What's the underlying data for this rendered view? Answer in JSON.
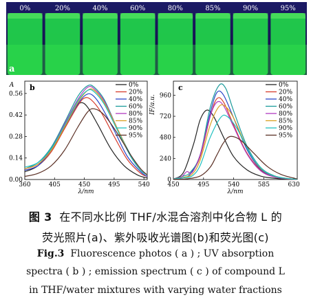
{
  "photo": {
    "panel_label": "a",
    "fractions": [
      "0%",
      "20%",
      "40%",
      "60%",
      "80%",
      "85%",
      "90%",
      "95%"
    ]
  },
  "chart_data": [
    {
      "type": "line",
      "panel": "b",
      "xlabel": "λ/nm",
      "ylabel": "A",
      "xlim": [
        360,
        545
      ],
      "ylim": [
        0,
        0.64
      ],
      "xticks": [
        360,
        405,
        450,
        495,
        540
      ],
      "yticks": [
        0.0,
        0.14,
        0.28,
        0.42,
        0.56
      ],
      "legend_position": "right",
      "series": [
        {
          "name": "0%",
          "color": "#222222",
          "x": [
            360,
            380,
            400,
            420,
            435,
            445,
            455,
            470,
            490,
            510,
            530,
            545
          ],
          "y": [
            0.05,
            0.09,
            0.2,
            0.36,
            0.46,
            0.5,
            0.47,
            0.36,
            0.2,
            0.09,
            0.03,
            0.01
          ]
        },
        {
          "name": "20%",
          "color": "#d63a2a",
          "x": [
            360,
            380,
            400,
            420,
            440,
            450,
            460,
            475,
            495,
            515,
            535,
            545
          ],
          "y": [
            0.06,
            0.09,
            0.18,
            0.33,
            0.48,
            0.53,
            0.52,
            0.44,
            0.28,
            0.13,
            0.04,
            0.02
          ]
        },
        {
          "name": "40%",
          "color": "#2a44c8",
          "x": [
            360,
            380,
            400,
            420,
            440,
            452,
            462,
            475,
            495,
            515,
            535,
            545
          ],
          "y": [
            0.06,
            0.09,
            0.19,
            0.34,
            0.49,
            0.55,
            0.55,
            0.48,
            0.32,
            0.15,
            0.05,
            0.02
          ]
        },
        {
          "name": "60%",
          "color": "#1a9a9a",
          "x": [
            360,
            380,
            400,
            420,
            440,
            455,
            465,
            480,
            500,
            520,
            535,
            545
          ],
          "y": [
            0.07,
            0.11,
            0.21,
            0.37,
            0.54,
            0.61,
            0.6,
            0.52,
            0.33,
            0.16,
            0.06,
            0.03
          ]
        },
        {
          "name": "80%",
          "color": "#b03abf",
          "x": [
            360,
            380,
            400,
            420,
            440,
            455,
            465,
            480,
            500,
            520,
            535,
            545
          ],
          "y": [
            0.07,
            0.1,
            0.2,
            0.36,
            0.52,
            0.6,
            0.59,
            0.51,
            0.33,
            0.15,
            0.06,
            0.03
          ]
        },
        {
          "name": "85%",
          "color": "#d8a020",
          "x": [
            360,
            380,
            400,
            420,
            440,
            455,
            465,
            480,
            500,
            520,
            535,
            545
          ],
          "y": [
            0.07,
            0.1,
            0.19,
            0.34,
            0.5,
            0.58,
            0.58,
            0.5,
            0.33,
            0.15,
            0.06,
            0.03
          ]
        },
        {
          "name": "90%",
          "color": "#1fc0c0",
          "x": [
            360,
            380,
            400,
            420,
            440,
            455,
            465,
            480,
            500,
            520,
            535,
            545
          ],
          "y": [
            0.08,
            0.11,
            0.2,
            0.35,
            0.51,
            0.58,
            0.57,
            0.49,
            0.32,
            0.15,
            0.06,
            0.03
          ]
        },
        {
          "name": "95%",
          "color": "#5a2f24",
          "x": [
            360,
            380,
            400,
            420,
            440,
            455,
            465,
            480,
            500,
            520,
            535,
            545
          ],
          "y": [
            0.02,
            0.04,
            0.09,
            0.19,
            0.34,
            0.44,
            0.46,
            0.42,
            0.3,
            0.16,
            0.07,
            0.03
          ]
        }
      ]
    },
    {
      "type": "line",
      "panel": "c",
      "xlabel": "λ/nm",
      "ylabel": "IF/a.u.",
      "xlim": [
        450,
        635
      ],
      "ylim": [
        0,
        1120
      ],
      "xticks": [
        450,
        495,
        540,
        585,
        630
      ],
      "yticks": [
        0,
        240,
        480,
        720,
        960
      ],
      "legend_position": "right",
      "series": [
        {
          "name": "0%",
          "color": "#222222",
          "x": [
            450,
            465,
            480,
            490,
            500,
            510,
            525,
            540,
            560,
            580,
            600,
            620,
            635
          ],
          "y": [
            5,
            80,
            400,
            680,
            790,
            720,
            480,
            260,
            110,
            40,
            15,
            5,
            2
          ]
        },
        {
          "name": "20%",
          "color": "#d63a2a",
          "x": [
            450,
            465,
            475,
            490,
            505,
            515,
            525,
            540,
            560,
            580,
            600,
            620,
            635
          ],
          "y": [
            5,
            20,
            60,
            260,
            720,
            920,
            880,
            620,
            300,
            110,
            35,
            10,
            3
          ]
        },
        {
          "name": "40%",
          "color": "#2a44c8",
          "x": [
            450,
            465,
            475,
            490,
            505,
            515,
            525,
            540,
            560,
            580,
            600,
            620,
            635
          ],
          "y": [
            5,
            20,
            60,
            280,
            760,
            990,
            960,
            700,
            340,
            120,
            40,
            12,
            3
          ]
        },
        {
          "name": "60%",
          "color": "#1a9a9a",
          "x": [
            450,
            465,
            475,
            490,
            505,
            518,
            528,
            540,
            560,
            580,
            600,
            620,
            635
          ],
          "y": [
            5,
            40,
            80,
            280,
            820,
            1070,
            1040,
            780,
            380,
            140,
            45,
            12,
            3
          ]
        },
        {
          "name": "80%",
          "color": "#b03abf",
          "x": [
            450,
            462,
            470,
            478,
            490,
            505,
            515,
            525,
            540,
            560,
            580,
            600,
            620,
            635
          ],
          "y": [
            5,
            30,
            90,
            80,
            280,
            720,
            880,
            840,
            600,
            290,
            100,
            30,
            8,
            2
          ]
        },
        {
          "name": "85%",
          "color": "#d8a020",
          "x": [
            450,
            465,
            478,
            490,
            505,
            518,
            528,
            540,
            560,
            580,
            600,
            620,
            635
          ],
          "y": [
            5,
            25,
            60,
            220,
            620,
            830,
            830,
            700,
            360,
            130,
            40,
            10,
            3
          ]
        },
        {
          "name": "90%",
          "color": "#1fc0c0",
          "x": [
            450,
            465,
            478,
            490,
            505,
            520,
            530,
            545,
            565,
            585,
            605,
            625,
            635
          ],
          "y": [
            5,
            20,
            40,
            160,
            480,
            700,
            720,
            580,
            290,
            100,
            30,
            8,
            3
          ]
        },
        {
          "name": "95%",
          "color": "#5a2f24",
          "x": [
            450,
            470,
            490,
            505,
            515,
            525,
            535,
            550,
            570,
            590,
            610,
            630,
            635
          ],
          "y": [
            2,
            8,
            40,
            140,
            280,
            420,
            490,
            450,
            300,
            150,
            60,
            15,
            8
          ]
        }
      ]
    }
  ],
  "caption": {
    "zh_label": "图 3",
    "zh_line1": "在不同水比例 THF/水混合溶剂中化合物 L 的",
    "zh_line2": "荧光照片(a)、紫外吸收光谱图(b)和荧光图(c)",
    "en_label": "Fig.3",
    "en_line1": "Fluorescence photos ( a ) ; UV absorption",
    "en_line2": "spectra ( b ) ; emission spectrum ( c ) of compound L",
    "en_line3": "in THF/water mixtures with varying water fractions"
  }
}
